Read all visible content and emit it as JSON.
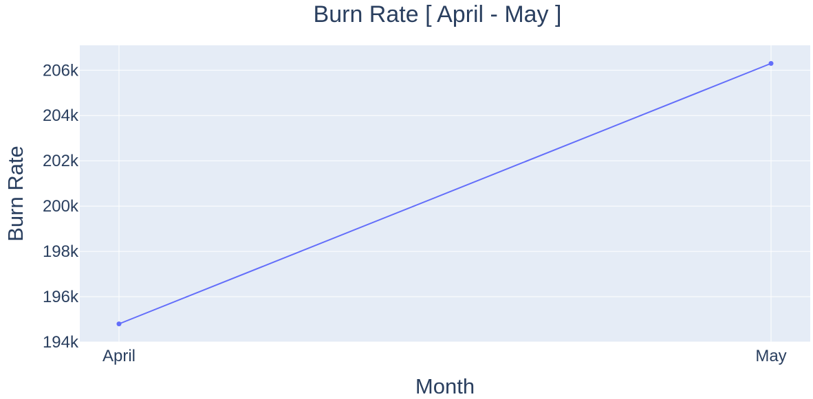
{
  "chart_data": {
    "type": "line",
    "title": "Burn Rate [ April - May ]",
    "xlabel": "Month",
    "ylabel": "Burn Rate",
    "categories": [
      "April",
      "May"
    ],
    "series": [
      {
        "values": [
          194800,
          206300
        ],
        "color": "#636efa"
      }
    ],
    "ylim": [
      194000,
      207100
    ],
    "yticks": [
      194000,
      196000,
      198000,
      200000,
      202000,
      204000,
      206000
    ],
    "ytick_labels": [
      "194k",
      "196k",
      "198k",
      "200k",
      "202k",
      "204k",
      "206k"
    ],
    "grid": true,
    "plot_background": "#e5ecf6",
    "grid_color": "#ffffff",
    "text_color": "#2a3f5f"
  }
}
